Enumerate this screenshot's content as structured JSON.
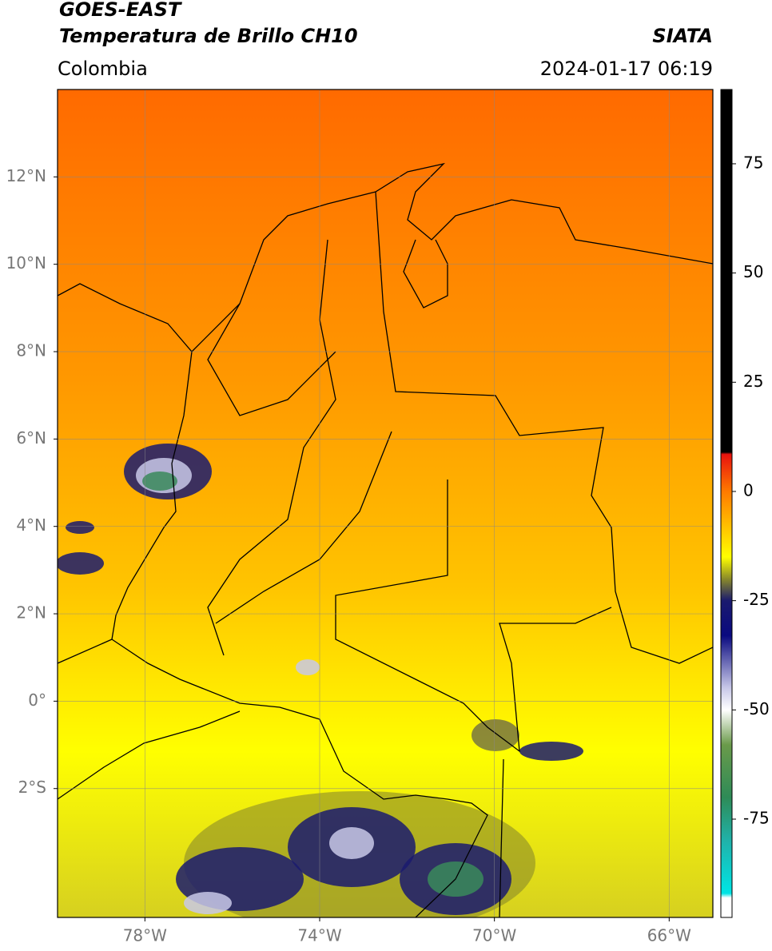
{
  "header": {
    "line1": "GOES-EAST",
    "line2": "Temperatura de Brillo CH10",
    "region": "Colombia",
    "source": "SIATA",
    "datetime": "2024-01-17 06:19"
  },
  "map": {
    "xlim": [
      -80,
      -65
    ],
    "ylim": [
      -4.95,
      14
    ],
    "xticks": [
      {
        "value": -78,
        "label": "78°W"
      },
      {
        "value": -74,
        "label": "74°W"
      },
      {
        "value": -70,
        "label": "70°W"
      },
      {
        "value": -66,
        "label": "66°W"
      }
    ],
    "yticks": [
      {
        "value": 12,
        "label": "12°N"
      },
      {
        "value": 10,
        "label": "10°N"
      },
      {
        "value": 8,
        "label": "8°N"
      },
      {
        "value": 6,
        "label": "6°N"
      },
      {
        "value": 4,
        "label": "4°N"
      },
      {
        "value": 2,
        "label": "2°N"
      },
      {
        "value": 0,
        "label": "0°"
      },
      {
        "value": -2,
        "label": "2°S"
      }
    ],
    "grid": true
  },
  "colorbar": {
    "lim": [
      -97.5,
      92
    ],
    "ticks": [
      75,
      50,
      25,
      0,
      -25,
      -50,
      -75
    ],
    "stops": [
      {
        "value": 92,
        "color": "#000000"
      },
      {
        "value": 9,
        "color": "#000000"
      },
      {
        "value": 8.5,
        "color": "#e8120e"
      },
      {
        "value": 0,
        "color": "#ff7a00"
      },
      {
        "value": -10,
        "color": "#ffd200"
      },
      {
        "value": -15,
        "color": "#ffff00"
      },
      {
        "value": -20,
        "color": "#8a8a2a"
      },
      {
        "value": -25,
        "color": "#1a1a6e"
      },
      {
        "value": -33,
        "color": "#0a0a80"
      },
      {
        "value": -45,
        "color": "#c8c8e8"
      },
      {
        "value": -50,
        "color": "#ffffff"
      },
      {
        "value": -58,
        "color": "#6a9a4a"
      },
      {
        "value": -70,
        "color": "#2e8b57"
      },
      {
        "value": -80,
        "color": "#20b2aa"
      },
      {
        "value": -92,
        "color": "#00e5e5"
      },
      {
        "value": -93,
        "color": "#ffffff"
      },
      {
        "value": -97.5,
        "color": "#ffffff"
      }
    ]
  }
}
